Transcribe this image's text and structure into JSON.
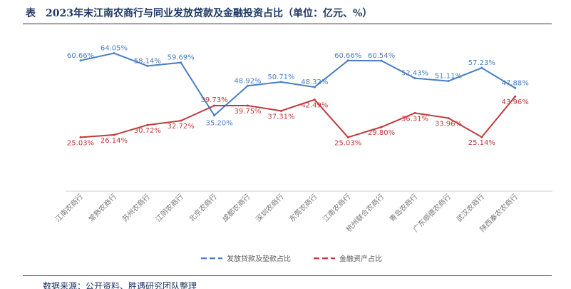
{
  "title": "表　2023年末江南农商行与同业发放贷款及金融投资占比（单位：亿元、%）",
  "source": "数据来源：公开资料、胜遇研究团队整理",
  "chart_data": {
    "type": "line",
    "categories": [
      "江南农商行",
      "常熟农商行",
      "苏州农商行",
      "江阴农商行",
      "北京农商行",
      "成都农商行",
      "深圳农商行",
      "东莞农商行",
      "江南农商行",
      "杭州联合农商行",
      "青岛农商行",
      "广东顺德农商行",
      "武汉农商行",
      "陕西秦农农商行"
    ],
    "series": [
      {
        "name": "发放贷款及垫款占比",
        "color": "#4a7ec4",
        "values": [
          60.66,
          64.05,
          58.14,
          59.69,
          35.2,
          48.92,
          50.71,
          48.32,
          60.66,
          60.54,
          52.43,
          51.11,
          57.23,
          47.88
        ]
      },
      {
        "name": "金融资产占比",
        "color": "#c0393b",
        "values": [
          25.03,
          26.14,
          30.72,
          32.72,
          39.73,
          39.75,
          37.31,
          42.49,
          25.03,
          29.8,
          36.31,
          33.96,
          25.14,
          43.96
        ]
      }
    ],
    "ylim": [
      0,
      66
    ],
    "legend": "bottom"
  }
}
